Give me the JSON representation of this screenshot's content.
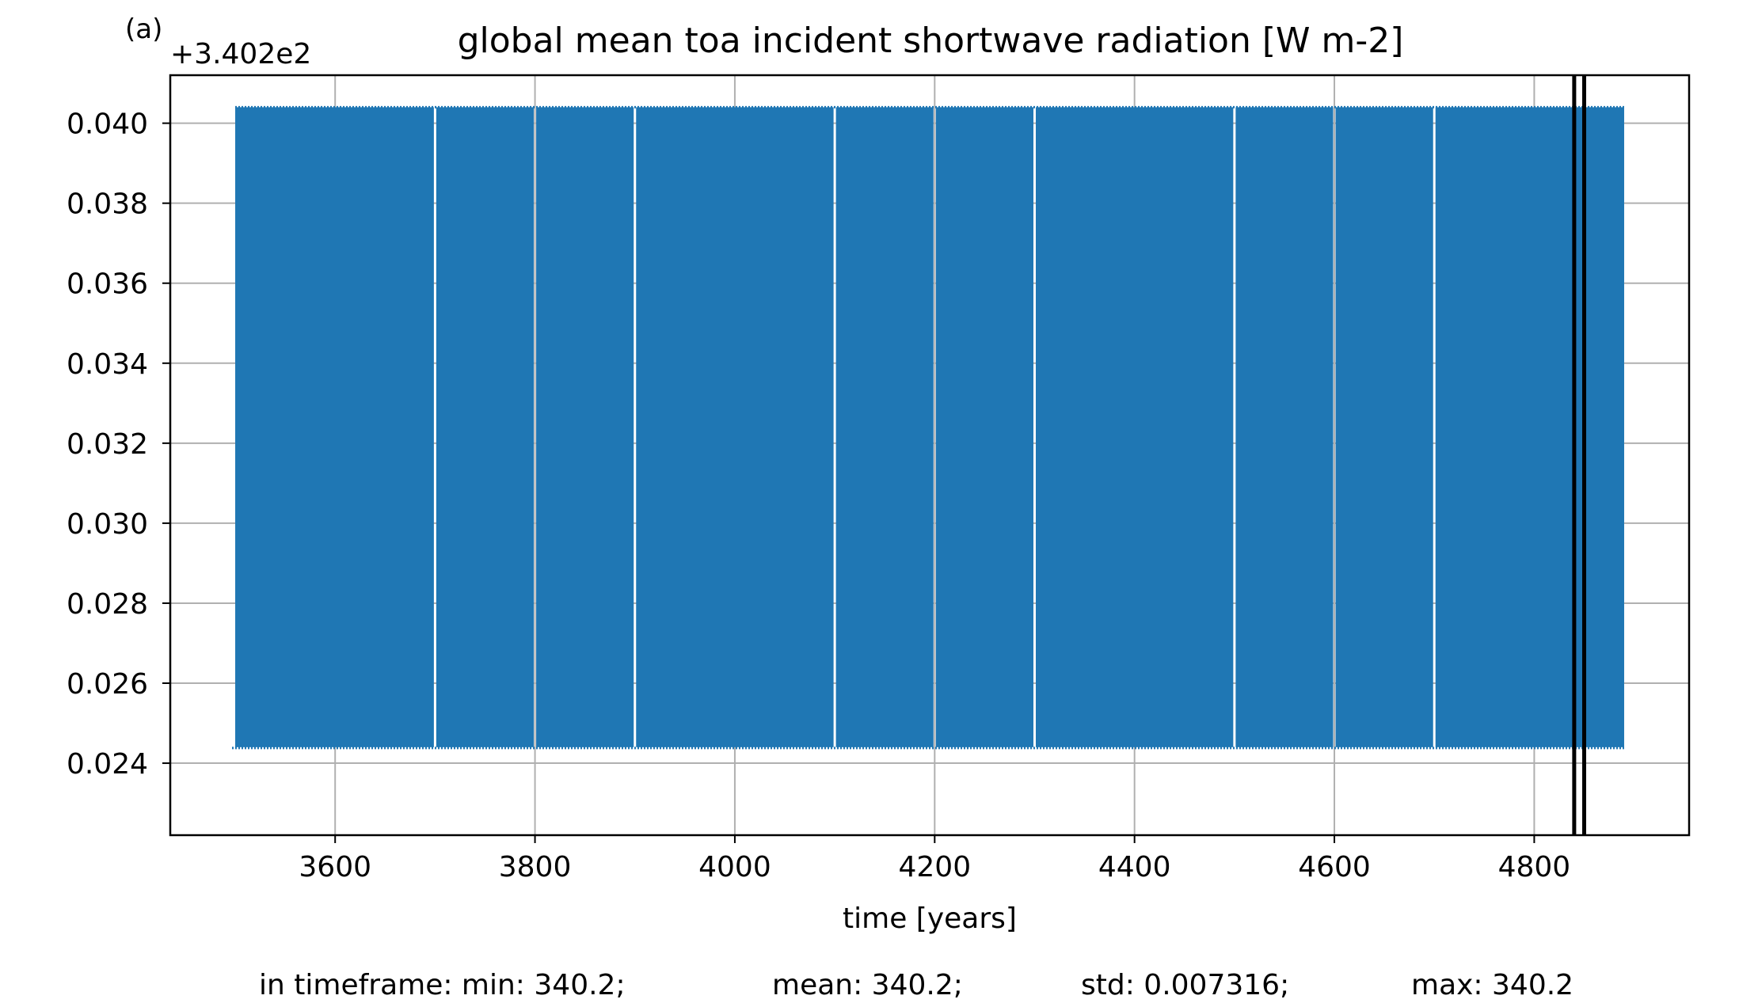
{
  "chart_data": {
    "type": "line",
    "panel_label": "(a)",
    "title": "global mean toa incident shortwave radiation [W m-2]",
    "xlabel": "time [years]",
    "ylabel": "",
    "y_offset_text": "+3.402e2",
    "y_offset_value": 340.2,
    "xlim": [
      3435,
      4955
    ],
    "ylim": [
      0.0222,
      0.0412
    ],
    "x_ticks": [
      3600,
      3800,
      4000,
      4200,
      4400,
      4600,
      4800
    ],
    "x_tick_labels": [
      "3600",
      "3800",
      "4000",
      "4200",
      "4400",
      "4600",
      "4800"
    ],
    "y_ticks": [
      0.024,
      0.026,
      0.028,
      0.03,
      0.032,
      0.034,
      0.036,
      0.038,
      0.04
    ],
    "y_tick_labels": [
      "0.024",
      "0.026",
      "0.028",
      "0.030",
      "0.032",
      "0.034",
      "0.036",
      "0.038",
      "0.040"
    ],
    "grid": true,
    "series": [
      {
        "color": "#1f77b4",
        "x_start": 3500,
        "x_end": 4890,
        "y_min": 0.0244,
        "y_max": 0.0404,
        "gap_years": [
          3700,
          3800,
          3900,
          4100,
          4200,
          4300,
          4500,
          4600,
          4700
        ]
      }
    ],
    "vlines": [
      {
        "x": 4840,
        "color": "#000000"
      },
      {
        "x": 4850,
        "color": "#000000"
      }
    ]
  },
  "stats": {
    "min_text": "in timeframe: min: 340.2;",
    "mean_text": "mean: 340.2;",
    "std_text": "std: 0.007316;",
    "max_text": "max: 340.2"
  }
}
